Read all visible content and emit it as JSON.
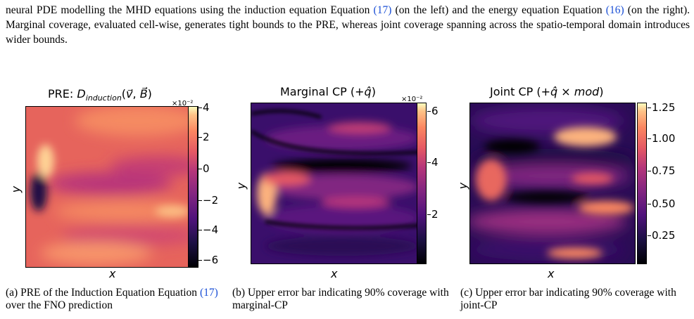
{
  "intro": {
    "line1_pre": "neural PDE modelling the MHD equations using the induction equation Equation ",
    "ref1": "(17)",
    "line1_mid": " (on the left) and the energy equation Equation ",
    "ref2": "(16)",
    "line2": "(on the right). Marginal coverage, evaluated cell-wise, generates tight bounds to the PRE, whereas joint coverage spanning across the spatio-temporal domain introduces wider bounds."
  },
  "panels": [
    {
      "title": "PRE: D_induction(v⃗, B⃗)",
      "colorbar_exponent": "×10⁻²",
      "ticks": [
        "4",
        "2",
        "0",
        "−2",
        "−4",
        "−6"
      ],
      "xlabel": "x",
      "ylabel": "y",
      "caption_pre": "(a) PRE of the Induction Equation Equation ",
      "caption_ref": "(17)",
      "caption_post": " over the FNO prediction"
    },
    {
      "title": "Marginal CP (+q̂)",
      "colorbar_exponent": "×10⁻²",
      "ticks": [
        "6",
        "4",
        "2"
      ],
      "xlabel": "x",
      "ylabel": "y",
      "caption": "(b) Upper error bar indicating 90% coverage with marginal-CP"
    },
    {
      "title": "Joint CP (+q̂ × mod)",
      "colorbar_exponent": "",
      "ticks": [
        "1.25",
        "1.00",
        "0.75",
        "0.50",
        "0.25"
      ],
      "xlabel": "x",
      "ylabel": "y",
      "caption": "(c) Upper error bar indicating 90% coverage with joint-CP"
    }
  ],
  "colormap": "magma",
  "colors": {
    "link": "#1a4fd6"
  }
}
